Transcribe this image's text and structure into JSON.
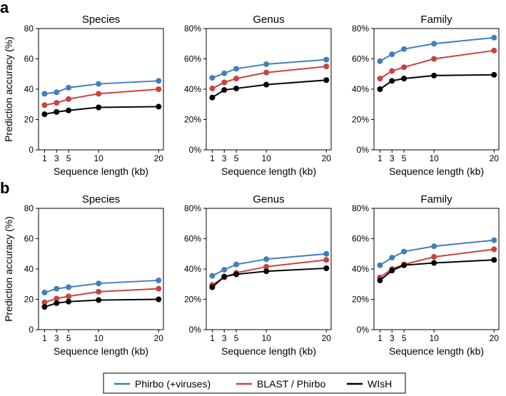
{
  "figure": {
    "panel_letters": [
      "a",
      "b"
    ],
    "xlabel": "Sequence length (kb)",
    "ylabel": "Prediction accuracy (%)"
  },
  "legend": [
    {
      "name": "Phirbo (+viruses)",
      "color": "#3f7fbf"
    },
    {
      "name": "BLAST / Phirbo",
      "color": "#c9433f"
    },
    {
      "name": "WIsH",
      "color": "#000000"
    }
  ],
  "chart_data": [
    {
      "type": "line",
      "row": "a",
      "col": 0,
      "title": "Species",
      "x": [
        1,
        3,
        5,
        10,
        20
      ],
      "xticks": [
        "1",
        "3",
        "5",
        "10",
        "20"
      ],
      "ylim": [
        0,
        80
      ],
      "yticks": [
        "0",
        "20",
        "40",
        "60",
        "80"
      ],
      "series": [
        {
          "name": "Phirbo (+viruses)",
          "values": [
            37,
            38,
            41,
            43.5,
            45.5
          ]
        },
        {
          "name": "BLAST / Phirbo",
          "values": [
            29.5,
            31,
            33.5,
            37,
            40
          ]
        },
        {
          "name": "WIsH",
          "values": [
            23.5,
            25,
            26,
            28,
            28.5
          ]
        }
      ]
    },
    {
      "type": "line",
      "row": "a",
      "col": 1,
      "title": "Genus",
      "x": [
        1,
        3,
        5,
        10,
        20
      ],
      "xticks": [
        "1",
        "3",
        "5",
        "10",
        "20"
      ],
      "ylim": [
        0,
        80
      ],
      "yticks": [
        "0%",
        "20%",
        "40%",
        "60%",
        "80%"
      ],
      "series": [
        {
          "name": "Phirbo (+viruses)",
          "values": [
            47.5,
            50.5,
            53.5,
            56.5,
            59.5
          ]
        },
        {
          "name": "BLAST / Phirbo",
          "values": [
            40.5,
            44.5,
            47,
            51,
            55
          ]
        },
        {
          "name": "WIsH",
          "values": [
            34.5,
            39.5,
            40.5,
            43,
            46
          ]
        }
      ]
    },
    {
      "type": "line",
      "row": "a",
      "col": 2,
      "title": "Family",
      "x": [
        1,
        3,
        5,
        10,
        20
      ],
      "xticks": [
        "1",
        "3",
        "5",
        "10",
        "20"
      ],
      "ylim": [
        0,
        80
      ],
      "yticks": [
        "0%",
        "20%",
        "40%",
        "60%",
        "80%"
      ],
      "series": [
        {
          "name": "Phirbo (+viruses)",
          "values": [
            58.5,
            63,
            66.5,
            70,
            74
          ]
        },
        {
          "name": "BLAST / Phirbo",
          "values": [
            47,
            52,
            54.5,
            60,
            65.5
          ]
        },
        {
          "name": "WIsH",
          "values": [
            40,
            45.5,
            47,
            49,
            49.5
          ]
        }
      ]
    },
    {
      "type": "line",
      "row": "b",
      "col": 0,
      "title": "Species",
      "x": [
        1,
        3,
        5,
        10,
        20
      ],
      "xticks": [
        "1",
        "3",
        "5",
        "10",
        "20"
      ],
      "ylim": [
        0,
        80
      ],
      "yticks": [
        "0",
        "20",
        "40",
        "60",
        "80"
      ],
      "series": [
        {
          "name": "Phirbo (+viruses)",
          "values": [
            24.5,
            27,
            28,
            30.5,
            32.5
          ]
        },
        {
          "name": "BLAST / Phirbo",
          "values": [
            18,
            20.5,
            22,
            25,
            27
          ]
        },
        {
          "name": "WIsH",
          "values": [
            15,
            17.5,
            18.5,
            19.5,
            20
          ]
        }
      ]
    },
    {
      "type": "line",
      "row": "b",
      "col": 1,
      "title": "Genus",
      "x": [
        1,
        3,
        5,
        10,
        20
      ],
      "xticks": [
        "1",
        "3",
        "5",
        "10",
        "20"
      ],
      "ylim": [
        0,
        80
      ],
      "yticks": [
        "0%",
        "20%",
        "40%",
        "60%",
        "80%"
      ],
      "series": [
        {
          "name": "Phirbo (+viruses)",
          "values": [
            35.5,
            39.5,
            43,
            46.5,
            50
          ]
        },
        {
          "name": "BLAST / Phirbo",
          "values": [
            29.5,
            34.5,
            37.5,
            41.5,
            46
          ]
        },
        {
          "name": "WIsH",
          "values": [
            28,
            35,
            36.5,
            38.5,
            40.5
          ]
        }
      ]
    },
    {
      "type": "line",
      "row": "b",
      "col": 2,
      "title": "Family",
      "x": [
        1,
        3,
        5,
        10,
        20
      ],
      "xticks": [
        "1",
        "3",
        "5",
        "10",
        "20"
      ],
      "ylim": [
        0,
        80
      ],
      "yticks": [
        "0%",
        "20%",
        "40%",
        "60%",
        "80%"
      ],
      "series": [
        {
          "name": "Phirbo (+viruses)",
          "values": [
            42.5,
            47.5,
            51.5,
            55,
            59
          ]
        },
        {
          "name": "BLAST / Phirbo",
          "values": [
            34.5,
            40,
            43,
            48,
            53
          ]
        },
        {
          "name": "WIsH",
          "values": [
            32.5,
            39,
            42.5,
            44,
            46
          ]
        }
      ]
    }
  ]
}
